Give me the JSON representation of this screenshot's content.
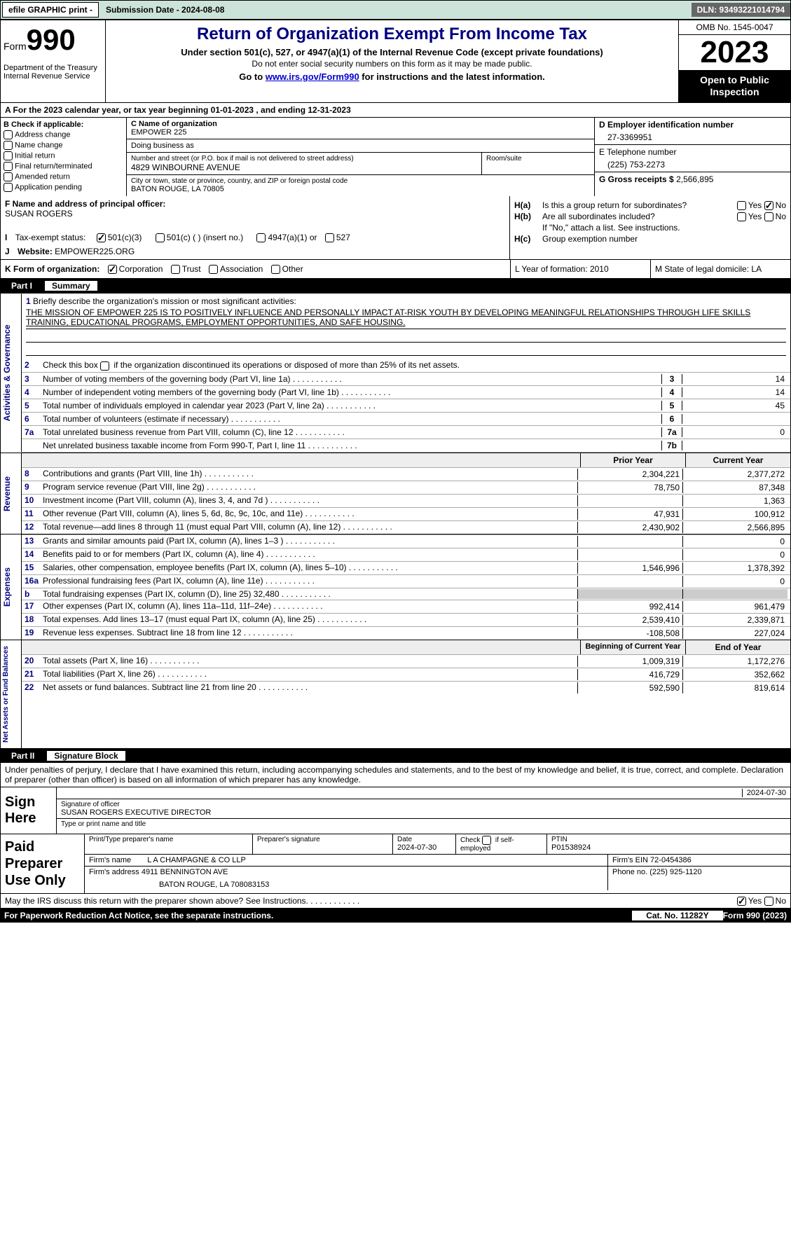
{
  "topbar": {
    "efile": "efile GRAPHIC print -",
    "submission": "Submission Date - 2024-08-08",
    "dln": "DLN: 93493221014794"
  },
  "header": {
    "form": "Form",
    "num": "990",
    "dept": "Department of the Treasury\nInternal Revenue Service",
    "title": "Return of Organization Exempt From Income Tax",
    "sub": "Under section 501(c), 527, or 4947(a)(1) of the Internal Revenue Code (except private foundations)",
    "note": "Do not enter social security numbers on this form as it may be made public.",
    "goto_pre": "Go to ",
    "goto_link": "www.irs.gov/Form990",
    "goto_post": " for instructions and the latest information.",
    "omb": "OMB No. 1545-0047",
    "year": "2023",
    "otp": "Open to Public Inspection"
  },
  "lineA": "A  For the 2023 calendar year, or tax year beginning 01-01-2023    , and ending 12-31-2023",
  "boxB": {
    "lbl": "B Check if applicable:",
    "items": [
      "Address change",
      "Name change",
      "Initial return",
      "Final return/terminated",
      "Amended return",
      "Application pending"
    ]
  },
  "boxC": {
    "name_lbl": "C Name of organization",
    "name": "EMPOWER 225",
    "dba_lbl": "Doing business as",
    "dba": "",
    "addr_lbl": "Number and street (or P.O. box if mail is not delivered to street address)",
    "addr": "4829 WINBOURNE AVENUE",
    "room_lbl": "Room/suite",
    "city_lbl": "City or town, state or province, country, and ZIP or foreign postal code",
    "city": "BATON ROUGE, LA  70805"
  },
  "boxD": {
    "ein_lbl": "D Employer identification number",
    "ein": "27-3369951",
    "tel_lbl": "E Telephone number",
    "tel": "(225) 753-2273",
    "gross_lbl": "G Gross receipts $ ",
    "gross": "2,566,895"
  },
  "boxF": {
    "lbl": "F  Name and address of principal officer:",
    "val": "SUSAN ROGERS"
  },
  "boxH": {
    "a_lbl": "H(a)",
    "a_txt": "Is this a group return for subordinates?",
    "b_lbl": "H(b)",
    "b_txt": "Are all subordinates included?",
    "b_note": "If \"No,\" attach a list. See instructions.",
    "c_lbl": "H(c)",
    "c_txt": "Group exemption number ",
    "yes": "Yes",
    "no": "No"
  },
  "boxI": {
    "lbl": "I",
    "txt": "Tax-exempt status:",
    "opts": [
      "501(c)(3)",
      "501(c) (   ) (insert no.)",
      "4947(a)(1) or",
      "527"
    ]
  },
  "boxJ": {
    "lbl": "J",
    "txt": "Website: ",
    "val": "EMPOWER225.ORG"
  },
  "boxK": {
    "lbl": "K Form of organization:",
    "opts": [
      "Corporation",
      "Trust",
      "Association",
      "Other"
    ],
    "L": "L Year of formation: 2010",
    "M": "M State of legal domicile: LA"
  },
  "part1": {
    "num": "Part I",
    "title": "Summary"
  },
  "summary": {
    "q1_lbl": "1",
    "q1_txt": "Briefly describe the organization's mission or most significant activities:",
    "q1_val": "THE MISSION OF EMPOWER 225 IS TO POSITIVELY INFLUENCE AND PERSONALLY IMPACT AT-RISK YOUTH BY DEVELOPING MEANINGFUL RELATIONSHIPS THROUGH LIFE SKILLS TRAINING, EDUCATIONAL PROGRAMS, EMPLOYMENT OPPORTUNITIES, AND SAFE HOUSING.",
    "q2_lbl": "2",
    "q2_txt": "Check this box       if the organization discontinued its operations or disposed of more than 25% of its net assets.",
    "rows": [
      {
        "n": "3",
        "t": "Number of voting members of the governing body (Part VI, line 1a)",
        "b": "3",
        "v": "14"
      },
      {
        "n": "4",
        "t": "Number of independent voting members of the governing body (Part VI, line 1b)",
        "b": "4",
        "v": "14"
      },
      {
        "n": "5",
        "t": "Total number of individuals employed in calendar year 2023 (Part V, line 2a)",
        "b": "5",
        "v": "45"
      },
      {
        "n": "6",
        "t": "Total number of volunteers (estimate if necessary)",
        "b": "6",
        "v": ""
      },
      {
        "n": "7a",
        "t": "Total unrelated business revenue from Part VIII, column (C), line 12",
        "b": "7a",
        "v": "0"
      },
      {
        "n": "",
        "t": "Net unrelated business taxable income from Form 990-T, Part I, line 11",
        "b": "7b",
        "v": ""
      }
    ],
    "tab_ag": "Activities & Governance"
  },
  "revenue": {
    "tab": "Revenue",
    "hdr_prior": "Prior Year",
    "hdr_curr": "Current Year",
    "rows": [
      {
        "n": "8",
        "t": "Contributions and grants (Part VIII, line 1h)",
        "p": "2,304,221",
        "c": "2,377,272"
      },
      {
        "n": "9",
        "t": "Program service revenue (Part VIII, line 2g)",
        "p": "78,750",
        "c": "87,348"
      },
      {
        "n": "10",
        "t": "Investment income (Part VIII, column (A), lines 3, 4, and 7d )",
        "p": "",
        "c": "1,363"
      },
      {
        "n": "11",
        "t": "Other revenue (Part VIII, column (A), lines 5, 6d, 8c, 9c, 10c, and 11e)",
        "p": "47,931",
        "c": "100,912"
      },
      {
        "n": "12",
        "t": "Total revenue—add lines 8 through 11 (must equal Part VIII, column (A), line 12)",
        "p": "2,430,902",
        "c": "2,566,895"
      }
    ]
  },
  "expenses": {
    "tab": "Expenses",
    "rows": [
      {
        "n": "13",
        "t": "Grants and similar amounts paid (Part IX, column (A), lines 1–3 )",
        "p": "",
        "c": "0"
      },
      {
        "n": "14",
        "t": "Benefits paid to or for members (Part IX, column (A), line 4)",
        "p": "",
        "c": "0"
      },
      {
        "n": "15",
        "t": "Salaries, other compensation, employee benefits (Part IX, column (A), lines 5–10)",
        "p": "1,546,996",
        "c": "1,378,392"
      },
      {
        "n": "16a",
        "t": "Professional fundraising fees (Part IX, column (A), line 11e)",
        "p": "",
        "c": "0"
      },
      {
        "n": "b",
        "t": "Total fundraising expenses (Part IX, column (D), line 25) 32,480",
        "p": "gray",
        "c": "gray"
      },
      {
        "n": "17",
        "t": "Other expenses (Part IX, column (A), lines 11a–11d, 11f–24e)",
        "p": "992,414",
        "c": "961,479"
      },
      {
        "n": "18",
        "t": "Total expenses. Add lines 13–17 (must equal Part IX, column (A), line 25)",
        "p": "2,539,410",
        "c": "2,339,871"
      },
      {
        "n": "19",
        "t": "Revenue less expenses. Subtract line 18 from line 12",
        "p": "-108,508",
        "c": "227,024"
      }
    ]
  },
  "netassets": {
    "tab": "Net Assets or Fund Balances",
    "hdr_beg": "Beginning of Current Year",
    "hdr_end": "End of Year",
    "rows": [
      {
        "n": "20",
        "t": "Total assets (Part X, line 16)",
        "p": "1,009,319",
        "c": "1,172,276"
      },
      {
        "n": "21",
        "t": "Total liabilities (Part X, line 26)",
        "p": "416,729",
        "c": "352,662"
      },
      {
        "n": "22",
        "t": "Net assets or fund balances. Subtract line 21 from line 20",
        "p": "592,590",
        "c": "819,614"
      }
    ]
  },
  "part2": {
    "num": "Part II",
    "title": "Signature Block"
  },
  "perjury": "Under penalties of perjury, I declare that I have examined this return, including accompanying schedules and statements, and to the best of my knowledge and belief, it is true, correct, and complete. Declaration of preparer (other than officer) is based on all information of which preparer has any knowledge.",
  "sign": {
    "lbl": "Sign Here",
    "sig_lbl": "Signature of officer",
    "date": "2024-07-30",
    "name": "SUSAN ROGERS  EXECUTIVE DIRECTOR",
    "name_lbl": "Type or print name and title"
  },
  "paid": {
    "lbl": "Paid Preparer Use Only",
    "col_name": "Print/Type preparer's name",
    "col_sig": "Preparer's signature",
    "col_date": "Date",
    "date": "2024-07-30",
    "col_chk": "Check        if self-employed",
    "col_ptin": "PTIN",
    "ptin": "P01538924",
    "firm_lbl": "Firm's name  ",
    "firm": "L A CHAMPAGNE & CO LLP",
    "ein_lbl": "Firm's EIN  ",
    "ein": "72-0454386",
    "addr_lbl": "Firm's address ",
    "addr1": "4911 BENNINGTON AVE",
    "addr2": "BATON ROUGE, LA  708083153",
    "phone_lbl": "Phone no. ",
    "phone": "(225) 925-1120"
  },
  "foot": {
    "discuss": "May the IRS discuss this return with the preparer shown above? See Instructions.",
    "yes": "Yes",
    "no": "No",
    "pra": "For Paperwork Reduction Act Notice, see the separate instructions.",
    "cat": "Cat. No. 11282Y",
    "form": "Form 990 (2023)"
  },
  "colors": {
    "topbar_bg": "#cce3d9",
    "link": "#0000cc",
    "title": "#000080"
  }
}
